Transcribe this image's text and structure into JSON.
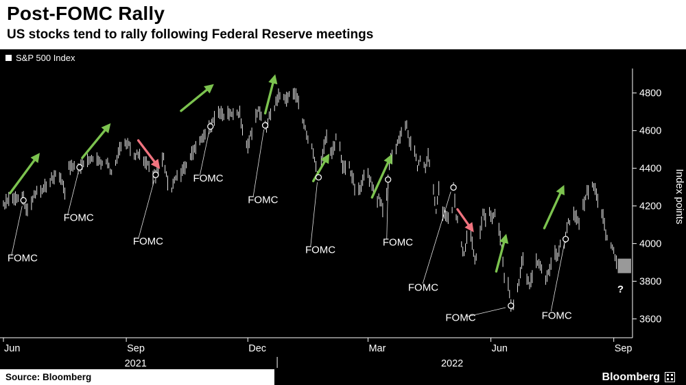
{
  "header": {
    "title": "Post-FOMC Rally",
    "subtitle": "US stocks tend to rally following Federal Reserve meetings"
  },
  "legend": {
    "label": "S&P 500 Index"
  },
  "footer": {
    "source": "Source: Bloomberg",
    "brand": "Bloomberg"
  },
  "colors": {
    "background": "#000000",
    "panel": "#ffffff",
    "text_light": "#ffffff",
    "text_dark": "#000000",
    "price": "#ffffff",
    "up_arrow": "#7cc34f",
    "down_arrow": "#f0737f",
    "unknown_box": "#999999"
  },
  "chart_data": {
    "type": "line",
    "style": "ohlc_bars",
    "title": "Post-FOMC Rally",
    "series_name": "S&P 500 Index",
    "ylabel": "Index points",
    "yticks": [
      3600,
      3800,
      4000,
      4200,
      4400,
      4600,
      4800
    ],
    "ylim": [
      3500,
      4930
    ],
    "x_domain_days": 470,
    "last_bar_day": 460,
    "x_start": "Jun 2021",
    "x_end": "Sep 2022",
    "month_ticks": [
      {
        "label": "Jun",
        "day": 0
      },
      {
        "label": "Sep",
        "day": 92
      },
      {
        "label": "Dec",
        "day": 183
      },
      {
        "label": "Mar",
        "day": 273
      },
      {
        "label": "Jun",
        "day": 365
      },
      {
        "label": "Sep",
        "day": 457
      }
    ],
    "year_labels": [
      {
        "label": "2021",
        "day": 99
      },
      {
        "label": "2022",
        "day": 336
      }
    ],
    "year_tick_day": 205,
    "anchors": [
      [
        0,
        4205
      ],
      [
        4,
        4230
      ],
      [
        9,
        4228
      ],
      [
        14,
        4252
      ],
      [
        16,
        4215
      ],
      [
        18,
        4168
      ],
      [
        21,
        4225
      ],
      [
        25,
        4282
      ],
      [
        29,
        4291
      ],
      [
        33,
        4320
      ],
      [
        37,
        4352
      ],
      [
        41,
        4372
      ],
      [
        44,
        4327
      ],
      [
        46,
        4262
      ],
      [
        49,
        4412
      ],
      [
        53,
        4420
      ],
      [
        57,
        4405
      ],
      [
        60,
        4423
      ],
      [
        64,
        4437
      ],
      [
        68,
        4447
      ],
      [
        72,
        4430
      ],
      [
        76,
        4442
      ],
      [
        79,
        4405
      ],
      [
        81,
        4368
      ],
      [
        84,
        4442
      ],
      [
        88,
        4510
      ],
      [
        91,
        4537
      ],
      [
        94,
        4520
      ],
      [
        97,
        4458
      ],
      [
        101,
        4480
      ],
      [
        104,
        4443
      ],
      [
        107,
        4433
      ],
      [
        110,
        4396
      ],
      [
        112,
        4358
      ],
      [
        114,
        4365
      ],
      [
        116,
        4396
      ],
      [
        118,
        4443
      ],
      [
        120,
        4455
      ],
      [
        122,
        4360
      ],
      [
        124,
        4307
      ],
      [
        126,
        4288
      ],
      [
        129,
        4350
      ],
      [
        132,
        4363
      ],
      [
        135,
        4392
      ],
      [
        138,
        4438
      ],
      [
        141,
        4472
      ],
      [
        144,
        4520
      ],
      [
        147,
        4545
      ],
      [
        150,
        4575
      ],
      [
        153,
        4605
      ],
      [
        156,
        4632
      ],
      [
        159,
        4685
      ],
      [
        162,
        4697
      ],
      [
        165,
        4683
      ],
      [
        168,
        4690
      ],
      [
        171,
        4688
      ],
      [
        174,
        4705
      ],
      [
        177,
        4690
      ],
      [
        179,
        4595
      ],
      [
        181,
        4567
      ],
      [
        183,
        4513
      ],
      [
        185,
        4577
      ],
      [
        187,
        4591
      ],
      [
        189,
        4668
      ],
      [
        191,
        4712
      ],
      [
        193,
        4669
      ],
      [
        195,
        4634
      ],
      [
        197,
        4621
      ],
      [
        199,
        4675
      ],
      [
        201,
        4697
      ],
      [
        203,
        4726
      ],
      [
        206,
        4786
      ],
      [
        209,
        4766
      ],
      [
        212,
        4778
      ],
      [
        216,
        4797
      ],
      [
        219,
        4793
      ],
      [
        222,
        4713
      ],
      [
        224,
        4663
      ],
      [
        227,
        4577
      ],
      [
        230,
        4532
      ],
      [
        232,
        4483
      ],
      [
        234,
        4410
      ],
      [
        236,
        4350
      ],
      [
        238,
        4432
      ],
      [
        241,
        4546
      ],
      [
        243,
        4589
      ],
      [
        245,
        4477
      ],
      [
        247,
        4500
      ],
      [
        250,
        4587
      ],
      [
        252,
        4504
      ],
      [
        254,
        4418
      ],
      [
        256,
        4401
      ],
      [
        258,
        4475
      ],
      [
        260,
        4380
      ],
      [
        262,
        4348
      ],
      [
        264,
        4225
      ],
      [
        266,
        4288
      ],
      [
        268,
        4306
      ],
      [
        271,
        4386
      ],
      [
        273,
        4363
      ],
      [
        275,
        4328
      ],
      [
        277,
        4277
      ],
      [
        279,
        4170
      ],
      [
        281,
        4262
      ],
      [
        283,
        4204
      ],
      [
        285,
        4173
      ],
      [
        287,
        4262
      ],
      [
        289,
        4411
      ],
      [
        290,
        4463
      ],
      [
        292,
        4456
      ],
      [
        294,
        4511
      ],
      [
        297,
        4575
      ],
      [
        300,
        4602
      ],
      [
        302,
        4631
      ],
      [
        304,
        4546
      ],
      [
        306,
        4525
      ],
      [
        308,
        4500
      ],
      [
        310,
        4412
      ],
      [
        312,
        4446
      ],
      [
        314,
        4462
      ],
      [
        316,
        4392
      ],
      [
        318,
        4459
      ],
      [
        320,
        4393
      ],
      [
        322,
        4300
      ],
      [
        324,
        4175
      ],
      [
        326,
        4287
      ],
      [
        328,
        4183
      ],
      [
        330,
        4155
      ],
      [
        332,
        4131
      ],
      [
        334,
        4155
      ],
      [
        336,
        4175
      ],
      [
        337,
        4298
      ],
      [
        339,
        4147
      ],
      [
        341,
        4124
      ],
      [
        343,
        4001
      ],
      [
        345,
        3935
      ],
      [
        347,
        4024
      ],
      [
        349,
        4089
      ],
      [
        351,
        4008
      ],
      [
        353,
        3901
      ],
      [
        355,
        3974
      ],
      [
        357,
        4058
      ],
      [
        359,
        4158
      ],
      [
        361,
        4132
      ],
      [
        363,
        4176
      ],
      [
        366,
        4121
      ],
      [
        368,
        4160
      ],
      [
        370,
        4116
      ],
      [
        372,
        4017
      ],
      [
        374,
        3901
      ],
      [
        376,
        3750
      ],
      [
        378,
        3790
      ],
      [
        380,
        3667
      ],
      [
        382,
        3675
      ],
      [
        384,
        3765
      ],
      [
        386,
        3790
      ],
      [
        388,
        3912
      ],
      [
        390,
        3900
      ],
      [
        392,
        3821
      ],
      [
        394,
        3785
      ],
      [
        397,
        3825
      ],
      [
        399,
        3902
      ],
      [
        401,
        3899
      ],
      [
        403,
        3854
      ],
      [
        405,
        3790
      ],
      [
        407,
        3818
      ],
      [
        409,
        3863
      ],
      [
        411,
        3936
      ],
      [
        413,
        3959
      ],
      [
        415,
        3937
      ],
      [
        417,
        3999
      ],
      [
        419,
        3960
      ],
      [
        421,
        4024
      ],
      [
        423,
        4130
      ],
      [
        425,
        4118
      ],
      [
        427,
        4155
      ],
      [
        429,
        4140
      ],
      [
        431,
        4118
      ],
      [
        433,
        4210
      ],
      [
        435,
        4207
      ],
      [
        437,
        4280
      ],
      [
        439,
        4274
      ],
      [
        441,
        4305
      ],
      [
        443,
        4292
      ],
      [
        445,
        4228
      ],
      [
        447,
        4199
      ],
      [
        449,
        4141
      ],
      [
        451,
        4058
      ],
      [
        453,
        4031
      ],
      [
        455,
        3986
      ],
      [
        457,
        3955
      ],
      [
        459,
        3908
      ],
      [
        460,
        3920
      ]
    ],
    "annotations": [
      {
        "label": "FOMC",
        "marker": {
          "day": 15,
          "value": 4230
        },
        "label_pos": {
          "day": 3,
          "value": 3905
        },
        "leader": {
          "from": {
            "day": 6,
            "value": 3935
          },
          "to": {
            "day": 14,
            "value": 4200
          }
        },
        "arrow": {
          "dir": "up",
          "from": {
            "day": 5,
            "value": 4268
          },
          "to": {
            "day": 26,
            "value": 4470
          }
        }
      },
      {
        "label": "FOMC",
        "marker": {
          "day": 57,
          "value": 4405
        },
        "label_pos": {
          "day": 45,
          "value": 4120
        },
        "leader": {
          "from": {
            "day": 48,
            "value": 4150
          },
          "to": {
            "day": 56,
            "value": 4378
          }
        },
        "arrow": {
          "dir": "up",
          "from": {
            "day": 59,
            "value": 4455
          },
          "to": {
            "day": 79,
            "value": 4628
          }
        }
      },
      {
        "label": "FOMC",
        "marker": {
          "day": 114,
          "value": 4365
        },
        "label_pos": {
          "day": 97,
          "value": 3995
        },
        "leader": {
          "from": {
            "day": 101,
            "value": 4025
          },
          "to": {
            "day": 113,
            "value": 4338
          }
        },
        "arrow": {
          "dir": "down",
          "from": {
            "day": 101,
            "value": 4548
          },
          "to": {
            "day": 116,
            "value": 4408
          }
        }
      },
      {
        "label": "FOMC",
        "marker": {
          "day": 155,
          "value": 4622
        },
        "label_pos": {
          "day": 142,
          "value": 4330
        },
        "leader": {
          "from": {
            "day": 147,
            "value": 4360
          },
          "to": {
            "day": 154,
            "value": 4596
          }
        },
        "arrow": {
          "dir": "up",
          "from": {
            "day": 133,
            "value": 4705
          },
          "to": {
            "day": 156,
            "value": 4838
          }
        }
      },
      {
        "label": "FOMC",
        "marker": {
          "day": 196,
          "value": 4628
        },
        "label_pos": {
          "day": 183,
          "value": 4215
        },
        "leader": {
          "from": {
            "day": 187,
            "value": 4248
          },
          "to": {
            "day": 195,
            "value": 4606
          }
        },
        "arrow": {
          "dir": "up",
          "from": {
            "day": 196,
            "value": 4692
          },
          "to": {
            "day": 203,
            "value": 4885
          }
        }
      },
      {
        "label": "FOMC",
        "marker": {
          "day": 236,
          "value": 4352
        },
        "label_pos": {
          "day": 226,
          "value": 3950
        },
        "leader": {
          "from": {
            "day": 230,
            "value": 3985
          },
          "to": {
            "day": 235,
            "value": 4326
          }
        },
        "arrow": {
          "dir": "up",
          "from": {
            "day": 232,
            "value": 4332
          },
          "to": {
            "day": 243,
            "value": 4465
          }
        }
      },
      {
        "label": "FOMC",
        "marker": {
          "day": 288,
          "value": 4340
        },
        "label_pos": {
          "day": 284,
          "value": 3990
        },
        "leader": {
          "from": {
            "day": 287,
            "value": 4022
          },
          "to": {
            "day": 288,
            "value": 4315
          }
        },
        "arrow": {
          "dir": "up",
          "from": {
            "day": 276,
            "value": 4245
          },
          "to": {
            "day": 290,
            "value": 4462
          }
        }
      },
      {
        "label": "FOMC",
        "marker": {
          "day": 337,
          "value": 4298
        },
        "label_pos": {
          "day": 303,
          "value": 3750
        },
        "leader": {
          "from": {
            "day": 314,
            "value": 3788
          },
          "to": {
            "day": 335,
            "value": 4276
          }
        },
        "arrow": {
          "dir": "down",
          "from": {
            "day": 340,
            "value": 4182
          },
          "to": {
            "day": 351,
            "value": 4072
          }
        }
      },
      {
        "label": "FOMC",
        "marker": {
          "day": 380,
          "value": 3670
        },
        "label_pos": {
          "day": 331,
          "value": 3590
        },
        "leader": {
          "from": {
            "day": 347,
            "value": 3612
          },
          "to": {
            "day": 376,
            "value": 3660
          }
        },
        "arrow": {
          "dir": "up",
          "from": {
            "day": 369,
            "value": 3852
          },
          "to": {
            "day": 376,
            "value": 4038
          }
        }
      },
      {
        "label": "FOMC",
        "marker": {
          "day": 421,
          "value": 4024
        },
        "label_pos": {
          "day": 403,
          "value": 3600
        },
        "leader": {
          "from": {
            "day": 410,
            "value": 3640
          },
          "to": {
            "day": 420,
            "value": 4000
          }
        },
        "arrow": {
          "dir": "up",
          "from": {
            "day": 405,
            "value": 4082
          },
          "to": {
            "day": 419,
            "value": 4298
          }
        }
      }
    ],
    "unknown": {
      "label": "?",
      "box": {
        "day_from": 460,
        "day_to": 470,
        "value_from": 3843,
        "value_to": 3920
      },
      "label_day": 462,
      "label_value": 3740
    }
  }
}
